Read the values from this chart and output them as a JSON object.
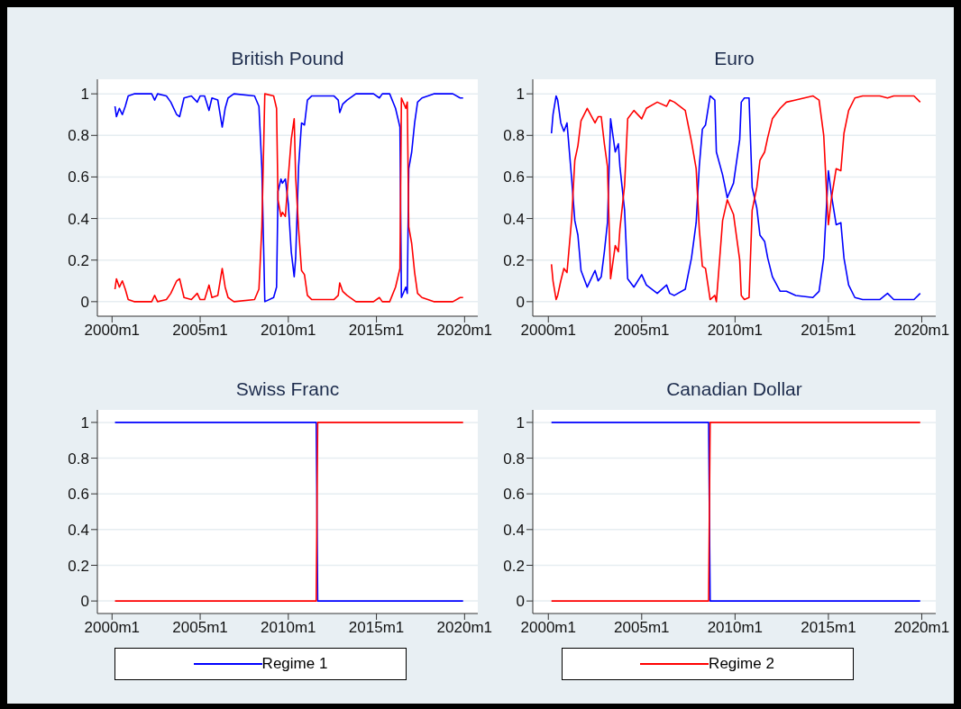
{
  "chart_data": [
    {
      "type": "line",
      "title": "British Pound",
      "xlim": [
        "1999-03",
        "2020-10"
      ],
      "ylim": [
        -0.07,
        1.07
      ],
      "xticks": [
        {
          "value": "2000-01",
          "label": "2000m1"
        },
        {
          "value": "2005-01",
          "label": "2005m1"
        },
        {
          "value": "2010-01",
          "label": "2010m1"
        },
        {
          "value": "2015-01",
          "label": "2015m1"
        },
        {
          "value": "2020-01",
          "label": "2020m1"
        }
      ],
      "yticks": [
        0,
        0.2,
        0.4,
        0.6,
        0.8,
        1
      ],
      "grid": "y",
      "x": [
        "2000-03",
        "2000-04",
        "2000-06",
        "2000-08",
        "2000-10",
        "2000-12",
        "2001-04",
        "2002-04",
        "2002-06",
        "2002-08",
        "2003-02",
        "2003-05",
        "2003-09",
        "2003-11",
        "2004-02",
        "2004-07",
        "2004-11",
        "2005-01",
        "2005-04",
        "2005-07",
        "2005-09",
        "2006-01",
        "2006-04",
        "2006-06",
        "2006-08",
        "2006-12",
        "2008-02",
        "2008-05",
        "2008-07",
        "2008-09",
        "2009-03",
        "2009-05",
        "2009-06",
        "2009-08",
        "2009-09",
        "2009-11",
        "2010-01",
        "2010-03",
        "2010-05",
        "2010-06",
        "2010-08",
        "2010-10",
        "2010-12",
        "2011-02",
        "2011-05",
        "2012-08",
        "2012-11",
        "2012-12",
        "2013-02",
        "2013-05",
        "2013-11",
        "2014-11",
        "2015-03",
        "2015-05",
        "2015-10",
        "2016-02",
        "2016-05",
        "2016-06",
        "2016-09",
        "2016-10",
        "2016-11",
        "2017-01",
        "2017-03",
        "2017-05",
        "2017-08",
        "2018-04",
        "2019-05",
        "2019-10",
        "2019-12"
      ],
      "series": [
        {
          "color": "#0000ff",
          "values": [
            0.94,
            0.89,
            0.93,
            0.9,
            0.94,
            0.99,
            1,
            1,
            0.97,
            1,
            0.99,
            0.96,
            0.9,
            0.89,
            0.98,
            0.99,
            0.96,
            0.99,
            0.99,
            0.92,
            0.98,
            0.97,
            0.84,
            0.93,
            0.98,
            1,
            0.99,
            0.94,
            0.64,
            0,
            0.02,
            0.07,
            0.53,
            0.59,
            0.57,
            0.59,
            0.47,
            0.24,
            0.12,
            0.21,
            0.65,
            0.86,
            0.85,
            0.97,
            0.99,
            0.99,
            0.97,
            0.91,
            0.95,
            0.97,
            1,
            1,
            0.98,
            1,
            1,
            0.93,
            0.84,
            0.02,
            0.07,
            0.04,
            0.64,
            0.72,
            0.86,
            0.96,
            0.98,
            1,
            1,
            0.98,
            0.98
          ]
        },
        {
          "color": "#ff0000",
          "values": [
            0.06,
            0.11,
            0.07,
            0.1,
            0.06,
            0.01,
            0,
            0,
            0.03,
            0,
            0.01,
            0.04,
            0.1,
            0.11,
            0.02,
            0.01,
            0.04,
            0.01,
            0.01,
            0.08,
            0.02,
            0.03,
            0.16,
            0.07,
            0.02,
            0,
            0.01,
            0.06,
            0.36,
            1,
            0.99,
            0.93,
            0.49,
            0.41,
            0.43,
            0.41,
            0.6,
            0.78,
            0.88,
            0.6,
            0.35,
            0.15,
            0.13,
            0.03,
            0.01,
            0.01,
            0.03,
            0.09,
            0.05,
            0.03,
            0,
            0,
            0.02,
            0,
            0,
            0.07,
            0.16,
            0.98,
            0.93,
            0.96,
            0.36,
            0.28,
            0.14,
            0.04,
            0.02,
            0,
            0,
            0.02,
            0.02
          ]
        }
      ]
    },
    {
      "type": "line",
      "title": "Euro",
      "xlim": [
        "1999-03",
        "2020-10"
      ],
      "ylim": [
        -0.07,
        1.07
      ],
      "xticks": [
        {
          "value": "2000-01",
          "label": "2000m1"
        },
        {
          "value": "2005-01",
          "label": "2005m1"
        },
        {
          "value": "2010-01",
          "label": "2010m1"
        },
        {
          "value": "2015-01",
          "label": "2015m1"
        },
        {
          "value": "2020-01",
          "label": "2020m1"
        }
      ],
      "yticks": [
        0,
        0.2,
        0.4,
        0.6,
        0.8,
        1
      ],
      "grid": "y",
      "x": [
        "2000-03",
        "2000-04",
        "2000-06",
        "2000-07",
        "2000-09",
        "2000-11",
        "2001-01",
        "2001-04",
        "2001-06",
        "2001-08",
        "2001-10",
        "2002-02",
        "2002-07",
        "2002-09",
        "2002-11",
        "2003-01",
        "2003-03",
        "2003-05",
        "2003-08",
        "2003-10",
        "2003-11",
        "2004-02",
        "2004-04",
        "2004-08",
        "2005-01",
        "2005-04",
        "2005-11",
        "2006-05",
        "2006-07",
        "2006-10",
        "2007-05",
        "2007-09",
        "2007-12",
        "2008-02",
        "2008-04",
        "2008-06",
        "2008-09",
        "2008-12",
        "2009-01",
        "2009-05",
        "2009-08",
        "2009-12",
        "2010-04",
        "2010-05",
        "2010-07",
        "2010-10",
        "2010-12",
        "2011-03",
        "2011-05",
        "2011-08",
        "2011-10",
        "2012-01",
        "2012-06",
        "2012-10",
        "2013-04",
        "2014-03",
        "2014-07",
        "2014-10",
        "2014-12",
        "2015-01",
        "2015-03",
        "2015-06",
        "2015-09",
        "2015-11",
        "2016-02",
        "2016-06",
        "2016-11",
        "2017-10",
        "2018-03",
        "2018-07",
        "2019-08",
        "2019-12"
      ],
      "series": [
        {
          "color": "#0000ff",
          "values": [
            0.81,
            0.9,
            0.99,
            0.97,
            0.86,
            0.82,
            0.86,
            0.59,
            0.39,
            0.32,
            0.15,
            0.07,
            0.15,
            0.1,
            0.12,
            0.24,
            0.38,
            0.88,
            0.72,
            0.76,
            0.65,
            0.44,
            0.11,
            0.07,
            0.13,
            0.08,
            0.04,
            0.08,
            0.04,
            0.03,
            0.06,
            0.21,
            0.38,
            0.65,
            0.83,
            0.85,
            0.99,
            0.97,
            0.72,
            0.61,
            0.5,
            0.57,
            0.78,
            0.96,
            0.98,
            0.98,
            0.55,
            0.45,
            0.32,
            0.29,
            0.21,
            0.12,
            0.05,
            0.05,
            0.03,
            0.02,
            0.05,
            0.21,
            0.49,
            0.63,
            0.51,
            0.37,
            0.38,
            0.21,
            0.08,
            0.02,
            0.01,
            0.01,
            0.04,
            0.01,
            0.01,
            0.04
          ]
        },
        {
          "color": "#ff0000",
          "values": [
            0.18,
            0.1,
            0.01,
            0.03,
            0.1,
            0.16,
            0.14,
            0.4,
            0.68,
            0.75,
            0.87,
            0.93,
            0.86,
            0.89,
            0.89,
            0.76,
            0.65,
            0.11,
            0.27,
            0.24,
            0.35,
            0.56,
            0.88,
            0.92,
            0.88,
            0.93,
            0.96,
            0.94,
            0.97,
            0.96,
            0.92,
            0.77,
            0.64,
            0.35,
            0.17,
            0.16,
            0.01,
            0.03,
            0,
            0.39,
            0.49,
            0.42,
            0.2,
            0.03,
            0.01,
            0.02,
            0.44,
            0.55,
            0.68,
            0.72,
            0.79,
            0.88,
            0.93,
            0.96,
            0.97,
            0.99,
            0.97,
            0.8,
            0.5,
            0.37,
            0.5,
            0.64,
            0.63,
            0.81,
            0.92,
            0.98,
            0.99,
            0.99,
            0.98,
            0.99,
            0.99,
            0.96
          ]
        }
      ]
    },
    {
      "type": "line",
      "title": "Swiss Franc",
      "xlim": [
        "1999-03",
        "2020-10"
      ],
      "ylim": [
        -0.07,
        1.07
      ],
      "xticks": [
        {
          "value": "2000-01",
          "label": "2000m1"
        },
        {
          "value": "2005-01",
          "label": "2005m1"
        },
        {
          "value": "2010-01",
          "label": "2010m1"
        },
        {
          "value": "2015-01",
          "label": "2015m1"
        },
        {
          "value": "2020-01",
          "label": "2020m1"
        }
      ],
      "yticks": [
        0,
        0.2,
        0.4,
        0.6,
        0.8,
        1
      ],
      "grid": "y",
      "legend": "bottom",
      "x": [
        "2000-03",
        "2011-08",
        "2011-09",
        "2019-12"
      ],
      "series": [
        {
          "name": "Regime 1",
          "color": "#0000ff",
          "values": [
            1,
            1,
            0,
            0
          ]
        },
        {
          "color": "#ff0000",
          "values": [
            0,
            0,
            1,
            1
          ]
        }
      ]
    },
    {
      "type": "line",
      "title": "Canadian Dollar",
      "xlim": [
        "1999-03",
        "2020-10"
      ],
      "ylim": [
        -0.07,
        1.07
      ],
      "xticks": [
        {
          "value": "2000-01",
          "label": "2000m1"
        },
        {
          "value": "2005-01",
          "label": "2005m1"
        },
        {
          "value": "2010-01",
          "label": "2010m1"
        },
        {
          "value": "2015-01",
          "label": "2015m1"
        },
        {
          "value": "2020-01",
          "label": "2020m1"
        }
      ],
      "yticks": [
        0,
        0.2,
        0.4,
        0.6,
        0.8,
        1
      ],
      "grid": "y",
      "legend": "bottom",
      "x": [
        "2000-03",
        "2008-08",
        "2008-09",
        "2019-12"
      ],
      "series": [
        {
          "color": "#0000ff",
          "values": [
            1,
            1,
            0,
            0
          ]
        },
        {
          "name": "Regime 2",
          "color": "#ff0000",
          "values": [
            0,
            0,
            1,
            1
          ]
        }
      ]
    }
  ]
}
